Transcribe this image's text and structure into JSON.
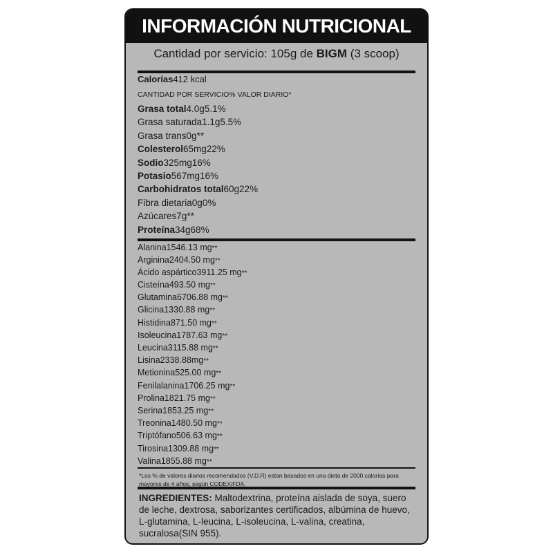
{
  "header": {
    "title": "INFORMACIÓN NUTRICIONAL",
    "serving_prefix": "Cantidad por servicio: 105g de",
    "serving_brand": "BIGM",
    "serving_suffix": "(3 scoop)"
  },
  "calories": {
    "label": "Calorías",
    "value": "412 kcal"
  },
  "columns": {
    "amount": "CANTIDAD POR SERVICIO",
    "dv": "% VALOR DIARIO*"
  },
  "nutrients": [
    {
      "name": "Grasa total",
      "amount": "4.0g",
      "dv": "5.1%",
      "sub": false
    },
    {
      "name": "Grasa saturada",
      "amount": "1.1g",
      "dv": "5.5%",
      "sub": true
    },
    {
      "name": "Grasa trans",
      "amount": "0g",
      "dv": "**",
      "sub": true
    },
    {
      "name": "Colesterol",
      "amount": "65mg",
      "dv": "22%",
      "sub": false
    },
    {
      "name": "Sodio",
      "amount": "325mg",
      "dv": "16%",
      "sub": false
    },
    {
      "name": "Potasio",
      "amount": "567mg",
      "dv": "16%",
      "sub": false
    },
    {
      "name": "Carbohidratos total",
      "amount": "60g",
      "dv": "22%",
      "sub": false
    },
    {
      "name": "Fibra dietaria",
      "amount": "0g",
      "dv": "0%",
      "sub": true
    },
    {
      "name": "Azúcares",
      "amount": "7g",
      "dv": "**",
      "sub": true
    },
    {
      "name": "Proteína",
      "amount": "34g",
      "dv": "68%",
      "sub": false
    }
  ],
  "amino_acids": [
    {
      "name": "Alanina",
      "amount": "1546.13 mg",
      "dv": "**"
    },
    {
      "name": "Arginina",
      "amount": "2404.50 mg",
      "dv": "**"
    },
    {
      "name": "Ácido aspártico",
      "amount": "3911.25 mg",
      "dv": "**"
    },
    {
      "name": "Cisteína",
      "amount": "493.50 mg",
      "dv": "**"
    },
    {
      "name": "Glutamina",
      "amount": "6706.88 mg",
      "dv": "**"
    },
    {
      "name": "Glicina",
      "amount": "1330.88 mg",
      "dv": "**"
    },
    {
      "name": "Histidina",
      "amount": "871.50 mg",
      "dv": "**"
    },
    {
      "name": "Isoleucina",
      "amount": "1787.63 mg",
      "dv": "**"
    },
    {
      "name": "Leucina",
      "amount": "3115.88 mg",
      "dv": "**"
    },
    {
      "name": "Lisina",
      "amount": "2338.88mg",
      "dv": "**"
    },
    {
      "name": "Metionina",
      "amount": "525.00 mg",
      "dv": "**"
    },
    {
      "name": "Fenilalanina",
      "amount": "1706.25 mg",
      "dv": "**"
    },
    {
      "name": "Prolina",
      "amount": "1821.75 mg",
      "dv": "**"
    },
    {
      "name": "Serina",
      "amount": "1853.25 mg",
      "dv": "**"
    },
    {
      "name": "Treonina",
      "amount": "1480.50 mg",
      "dv": "**"
    },
    {
      "name": "Triptófano",
      "amount": "506.63 mg",
      "dv": "**"
    },
    {
      "name": "Tirosina",
      "amount": "1309.88 mg",
      "dv": "**"
    },
    {
      "name": "Valina",
      "amount": "1855.88 mg",
      "dv": "**"
    }
  ],
  "footnote": "*Los % de valores diarios recomendados (V.D.R) estan basados en una dieta de 2000 calorías para mayores de 4 años, según CODEX/FDA.",
  "ingredients": {
    "label": "INGREDIENTES:",
    "text": "Maltodextrina, proteína aislada de soya, suero de leche, dextrosa, saborizantes certificados, albúmina de huevo, L-glutamina, L-leucina, L-isoleucina, L-valina, creatina, sucralosa(SIN 955)."
  }
}
